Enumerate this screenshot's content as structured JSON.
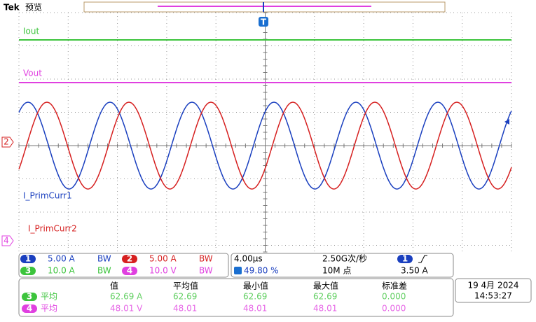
{
  "header": {
    "brand": "Tek",
    "mode": "预览"
  },
  "trigger_badge": "T",
  "trace_labels": [
    {
      "text": "Iout",
      "color": "#3cc43c"
    },
    {
      "text": "Vout",
      "color": "#e040e0"
    },
    {
      "text": "I_PrimCurr1",
      "color": "#1a3fbf"
    },
    {
      "text": "I_PrimCurr2",
      "color": "#d62020"
    }
  ],
  "level_markers": [
    {
      "text": "2",
      "color": "#d62020"
    },
    {
      "text": "4",
      "color": "#e040e0"
    }
  ],
  "channels": [
    {
      "number": "1",
      "scale": "5.00 A",
      "bw": "BW",
      "color": "#1a3fbf"
    },
    {
      "number": "2",
      "scale": "5.00 A",
      "bw": "BW",
      "color": "#d62020"
    },
    {
      "number": "3",
      "scale": "10.0 A",
      "bw": "BW",
      "color": "#3cc43c"
    },
    {
      "number": "4",
      "scale": "10.0 V",
      "bw": "BW",
      "color": "#e040e0"
    }
  ],
  "acquisition": {
    "time_scale": "4.00µs",
    "sample_rate": "2.50G次/秒",
    "trigger_position": "49.80 %",
    "record_length": "10M 点",
    "trigger_channel": "1",
    "trigger_level": "3.50 A"
  },
  "measurements": {
    "headers": [
      "值",
      "平均值",
      "最小值",
      "最大值",
      "标准差"
    ],
    "rows": [
      {
        "channel": "3",
        "stat": "平均",
        "color": "#3cc43c",
        "values": [
          "62.69 A",
          "62.69",
          "62.69",
          "62.69",
          "0.000"
        ]
      },
      {
        "channel": "4",
        "stat": "平均",
        "color": "#e040e0",
        "values": [
          "48.01 V",
          "48.01",
          "48.01",
          "48.01",
          "0.000"
        ]
      }
    ]
  },
  "datetime": {
    "date": "19 4月 2024",
    "time": "14:53:27"
  }
}
